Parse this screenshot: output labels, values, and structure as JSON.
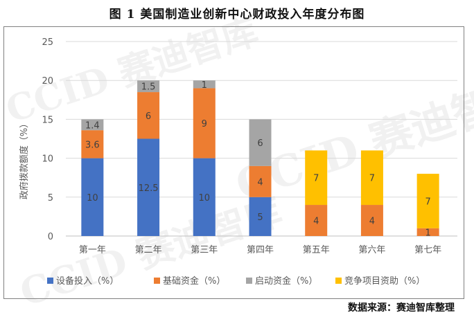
{
  "title": "图 1    美国制造业创新中心财政投入年度分布图",
  "source": "数据来源：赛迪智库整理",
  "watermark": "CCID 赛迪智库",
  "colors": {
    "设备投入": "#4472C4",
    "基础资金": "#ED7D31",
    "启动资金": "#A5A5A5",
    "竞争项目资助": "#FFC000"
  },
  "chart_data": {
    "type": "bar",
    "stacked": true,
    "title": "图 1    美国制造业创新中心财政投入年度分布图",
    "xlabel": "",
    "ylabel": "政府拨款额度（%）",
    "ylim": [
      0,
      25
    ],
    "yticks": [
      0,
      5,
      10,
      15,
      20,
      25
    ],
    "grid": true,
    "legend": "bottom",
    "categories": [
      "第一年",
      "第二年",
      "第三年",
      "第四年",
      "第五年",
      "第六年",
      "第七年"
    ],
    "series": [
      {
        "name": "设备投入（%）",
        "key": "设备投入",
        "values": [
          10,
          12.5,
          10,
          5,
          null,
          null,
          null
        ],
        "labels": [
          "10",
          "12.5",
          "10",
          "5",
          "",
          "",
          ""
        ]
      },
      {
        "name": "基础资金（%）",
        "key": "基础资金",
        "values": [
          3.6,
          6,
          9,
          4,
          4,
          4,
          1
        ],
        "labels": [
          "3.6",
          "6",
          "9",
          "4",
          "4",
          "4",
          "1"
        ]
      },
      {
        "name": "启动资金（%）",
        "key": "启动资金",
        "values": [
          1.4,
          1.5,
          1,
          6,
          null,
          null,
          null
        ],
        "labels": [
          "1.4",
          "1.5",
          "1",
          "6",
          "",
          "",
          ""
        ]
      },
      {
        "name": "竞争项目资助（%）",
        "key": "竞争项目资助",
        "values": [
          null,
          null,
          null,
          null,
          7,
          7,
          7
        ],
        "labels": [
          "",
          "",
          "",
          "",
          "7",
          "7",
          "7"
        ]
      }
    ]
  }
}
